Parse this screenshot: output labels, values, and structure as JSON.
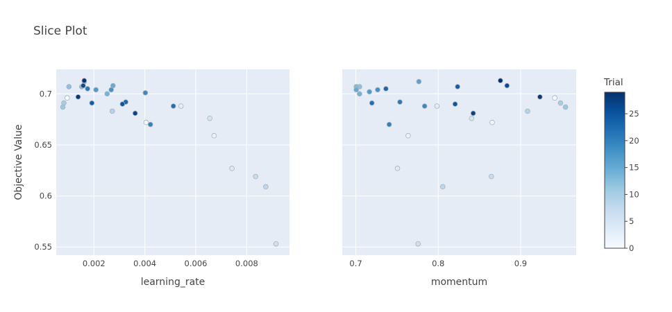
{
  "chart_data": {
    "type": "scatter",
    "title": "Slice Plot",
    "ylabel": "Objective Value",
    "ylim": [
      0.542,
      0.724
    ],
    "yticks": [
      0.55,
      0.6,
      0.65,
      0.7
    ],
    "ytick_labels": [
      "0.55",
      "0.6",
      "0.65",
      "0.7"
    ],
    "grid": true,
    "panels": [
      {
        "xlabel": "learning_rate",
        "xlim": [
          0.00052,
          0.00968
        ],
        "xticks": [
          0.002,
          0.004,
          0.006,
          0.008
        ],
        "xtick_labels": [
          "0.002",
          "0.004",
          "0.006",
          "0.008"
        ],
        "points": [
          {
            "x": 0.00095,
            "y": 0.696,
            "trial": 0
          },
          {
            "x": 0.00405,
            "y": 0.672,
            "trial": 1
          },
          {
            "x": 0.00672,
            "y": 0.659,
            "trial": 2
          },
          {
            "x": 0.00542,
            "y": 0.688,
            "trial": 3
          },
          {
            "x": 0.00742,
            "y": 0.627,
            "trial": 4
          },
          {
            "x": 0.00655,
            "y": 0.676,
            "trial": 5
          },
          {
            "x": 0.00915,
            "y": 0.553,
            "trial": 6
          },
          {
            "x": 0.00835,
            "y": 0.619,
            "trial": 7
          },
          {
            "x": 0.00875,
            "y": 0.609,
            "trial": 8
          },
          {
            "x": 0.00272,
            "y": 0.683,
            "trial": 9
          },
          {
            "x": 0.00082,
            "y": 0.691,
            "trial": 10
          },
          {
            "x": 0.00078,
            "y": 0.687,
            "trial": 11
          },
          {
            "x": 0.00102,
            "y": 0.707,
            "trial": 12
          },
          {
            "x": 0.00152,
            "y": 0.707,
            "trial": 13
          },
          {
            "x": 0.00252,
            "y": 0.7,
            "trial": 14
          },
          {
            "x": 0.00275,
            "y": 0.708,
            "trial": 15
          },
          {
            "x": 0.00162,
            "y": 0.712,
            "trial": 16
          },
          {
            "x": 0.00208,
            "y": 0.704,
            "trial": 17
          },
          {
            "x": 0.00268,
            "y": 0.704,
            "trial": 18
          },
          {
            "x": 0.00402,
            "y": 0.701,
            "trial": 19
          },
          {
            "x": 0.00422,
            "y": 0.67,
            "trial": 20
          },
          {
            "x": 0.00175,
            "y": 0.705,
            "trial": 21
          },
          {
            "x": 0.00512,
            "y": 0.688,
            "trial": 22
          },
          {
            "x": 0.00325,
            "y": 0.692,
            "trial": 23
          },
          {
            "x": 0.00192,
            "y": 0.691,
            "trial": 24
          },
          {
            "x": 0.00312,
            "y": 0.69,
            "trial": 25
          },
          {
            "x": 0.00158,
            "y": 0.708,
            "trial": 26
          },
          {
            "x": 0.00362,
            "y": 0.681,
            "trial": 27
          },
          {
            "x": 0.00138,
            "y": 0.697,
            "trial": 28
          },
          {
            "x": 0.00162,
            "y": 0.713,
            "trial": 29
          }
        ]
      },
      {
        "xlabel": "momentum",
        "xlim": [
          0.6835,
          0.9675
        ],
        "xticks": [
          0.7,
          0.8,
          0.9
        ],
        "xtick_labels": [
          "0.7",
          "0.8",
          "0.9"
        ],
        "points": [
          {
            "x": 0.9415,
            "y": 0.696,
            "trial": 0
          },
          {
            "x": 0.8655,
            "y": 0.672,
            "trial": 1
          },
          {
            "x": 0.7635,
            "y": 0.659,
            "trial": 2
          },
          {
            "x": 0.7985,
            "y": 0.688,
            "trial": 3
          },
          {
            "x": 0.7505,
            "y": 0.627,
            "trial": 4
          },
          {
            "x": 0.8405,
            "y": 0.676,
            "trial": 5
          },
          {
            "x": 0.7755,
            "y": 0.553,
            "trial": 6
          },
          {
            "x": 0.8645,
            "y": 0.619,
            "trial": 7
          },
          {
            "x": 0.8055,
            "y": 0.609,
            "trial": 8
          },
          {
            "x": 0.9085,
            "y": 0.683,
            "trial": 9
          },
          {
            "x": 0.9485,
            "y": 0.691,
            "trial": 10
          },
          {
            "x": 0.9545,
            "y": 0.687,
            "trial": 11
          },
          {
            "x": 0.7045,
            "y": 0.707,
            "trial": 12
          },
          {
            "x": 0.7005,
            "y": 0.707,
            "trial": 13
          },
          {
            "x": 0.7045,
            "y": 0.7,
            "trial": 14
          },
          {
            "x": 0.7005,
            "y": 0.704,
            "trial": 15
          },
          {
            "x": 0.7765,
            "y": 0.712,
            "trial": 16
          },
          {
            "x": 0.7165,
            "y": 0.702,
            "trial": 17
          },
          {
            "x": 0.7265,
            "y": 0.704,
            "trial": 18
          },
          {
            "x": 0.7835,
            "y": 0.688,
            "trial": 19
          },
          {
            "x": 0.7405,
            "y": 0.67,
            "trial": 20
          },
          {
            "x": 0.7535,
            "y": 0.692,
            "trial": 21
          },
          {
            "x": 0.7195,
            "y": 0.691,
            "trial": 22
          },
          {
            "x": 0.7365,
            "y": 0.705,
            "trial": 23
          },
          {
            "x": 0.8235,
            "y": 0.707,
            "trial": 24
          },
          {
            "x": 0.8205,
            "y": 0.69,
            "trial": 25
          },
          {
            "x": 0.8835,
            "y": 0.708,
            "trial": 26
          },
          {
            "x": 0.8425,
            "y": 0.681,
            "trial": 27
          },
          {
            "x": 0.9235,
            "y": 0.697,
            "trial": 28
          },
          {
            "x": 0.8755,
            "y": 0.713,
            "trial": 29
          }
        ]
      }
    ],
    "colorbar": {
      "title": "Trial",
      "range": [
        0,
        29
      ],
      "ticks": [
        0,
        5,
        10,
        15,
        20,
        25
      ],
      "tick_labels": [
        "0",
        "5",
        "10",
        "15",
        "20",
        "25"
      ],
      "colorscale": [
        "#f7fbff",
        "#deebf7",
        "#c6dbef",
        "#9ecae1",
        "#6baed6",
        "#4292c6",
        "#2171b5",
        "#08519c",
        "#08306b"
      ]
    },
    "colors": {
      "plot_bg": "#e5ecf6",
      "grid": "#ffffff",
      "marker_line": "#aab1bb"
    }
  }
}
